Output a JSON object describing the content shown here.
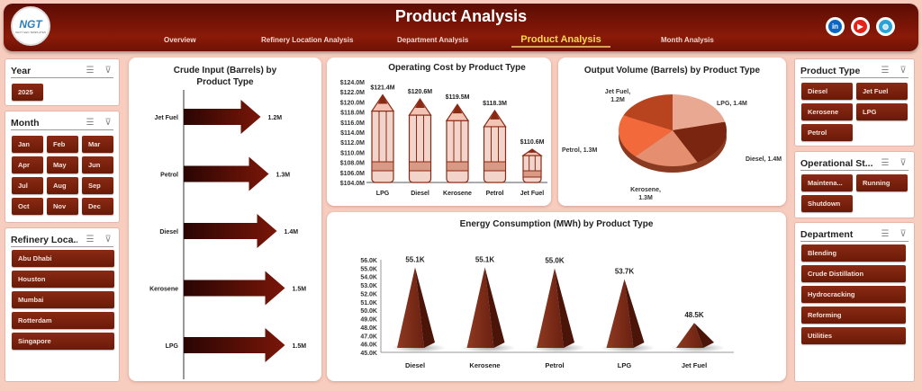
{
  "header": {
    "title": "Product Analysis",
    "logo_text": "NGT",
    "logo_subtext": "NEXT GEN TEMPLATES",
    "nav": [
      {
        "label": "Overview"
      },
      {
        "label": "Refinery Location Analysis"
      },
      {
        "label": "Department Analysis"
      },
      {
        "label": "Product Analysis",
        "active": true
      },
      {
        "label": "Month Analysis"
      }
    ],
    "social": [
      {
        "icon": "linkedin-icon",
        "text": "in",
        "color": "#0a66c2"
      },
      {
        "icon": "youtube-icon",
        "text": "▶",
        "color": "#e62117"
      },
      {
        "icon": "globe-icon",
        "text": "◍",
        "color": "#2aa3d8"
      }
    ]
  },
  "left": {
    "year": {
      "title": "Year",
      "items": [
        "2025"
      ]
    },
    "month": {
      "title": "Month",
      "items": [
        "Jan",
        "Feb",
        "Mar",
        "Apr",
        "May",
        "Jun",
        "Jul",
        "Aug",
        "Sep",
        "Oct",
        "Nov",
        "Dec"
      ]
    },
    "refinery": {
      "title": "Refinery Loca...",
      "items": [
        "Abu Dhabi",
        "Houston",
        "Mumbai",
        "Rotterdam",
        "Singapore"
      ]
    }
  },
  "right": {
    "product": {
      "title": "Product Type",
      "items": [
        "Diesel",
        "Jet Fuel",
        "Kerosene",
        "LPG",
        "Petrol"
      ]
    },
    "status": {
      "title": "Operational St...",
      "items": [
        "Maintena...",
        "Running",
        "Shutdown"
      ]
    },
    "department": {
      "title": "Department",
      "items": [
        "Blending",
        "Crude Distillation",
        "Hydrocracking",
        "Reforming",
        "Utilities"
      ]
    }
  },
  "colors": {
    "accent": "#7a2010",
    "header": "#7a1608",
    "active_nav": "#ffd84a"
  },
  "chart_data": [
    {
      "type": "bar",
      "orientation": "horizontal",
      "title": "Crude Input (Barrels) by Product Type",
      "categories": [
        "Jet Fuel",
        "Petrol",
        "Diesel",
        "Kerosene",
        "LPG"
      ],
      "values": [
        1.2,
        1.3,
        1.4,
        1.5,
        1.5
      ],
      "labels": [
        "1.2M",
        "1.3M",
        "1.4M",
        "1.5M",
        "1.5M"
      ],
      "unit": "M"
    },
    {
      "type": "bar",
      "title": "Operating Cost by Product Type",
      "categories": [
        "LPG",
        "Diesel",
        "Kerosene",
        "Petrol",
        "Jet Fuel"
      ],
      "values": [
        121.4,
        120.6,
        119.5,
        118.3,
        110.6
      ],
      "labels": [
        "$121.4M",
        "$120.6M",
        "$119.5M",
        "$118.3M",
        "$110.6M"
      ],
      "ylim": [
        104,
        124
      ],
      "yticks": [
        "$104.0M",
        "$106.0M",
        "$108.0M",
        "$110.0M",
        "$112.0M",
        "$114.0M",
        "$116.0M",
        "$118.0M",
        "$120.0M",
        "$122.0M",
        "$124.0M"
      ]
    },
    {
      "type": "pie",
      "title": "Output Volume (Barrels) by Product Type",
      "categories": [
        "LPG",
        "Diesel",
        "Kerosene",
        "Petrol",
        "Jet Fuel"
      ],
      "values": [
        1.4,
        1.4,
        1.3,
        1.3,
        1.2
      ],
      "labels": [
        "LPG, 1.4M",
        "Diesel, 1.4M",
        "Kerosene, 1.3M",
        "Petrol, 1.3M",
        "Jet Fuel, 1.2M"
      ],
      "colors": [
        "#e9a892",
        "#7a2510",
        "#e58e70",
        "#f26a3c",
        "#b8431f"
      ]
    },
    {
      "type": "bar",
      "title": "Energy Consumption (MWh) by Product Type",
      "categories": [
        "Diesel",
        "Kerosene",
        "Petrol",
        "LPG",
        "Jet Fuel"
      ],
      "values": [
        55.1,
        55.1,
        55.0,
        53.7,
        48.5
      ],
      "labels": [
        "55.1K",
        "55.1K",
        "55.0K",
        "53.7K",
        "48.5K"
      ],
      "ylim": [
        45,
        56
      ],
      "yticks": [
        "45.0K",
        "46.0K",
        "47.0K",
        "48.0K",
        "49.0K",
        "50.0K",
        "51.0K",
        "52.0K",
        "53.0K",
        "54.0K",
        "55.0K",
        "56.0K"
      ]
    }
  ]
}
